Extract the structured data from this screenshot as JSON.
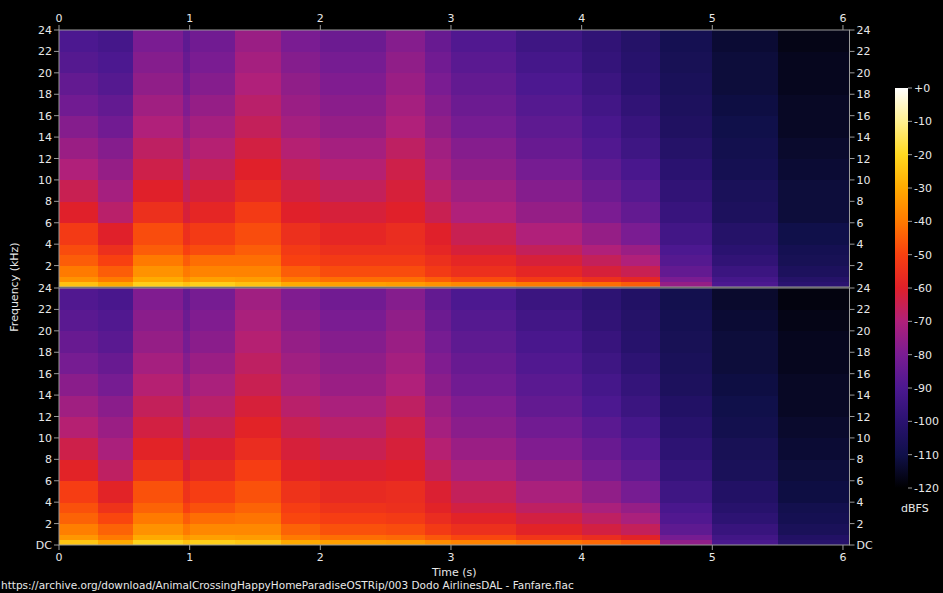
{
  "chart_data": [
    {
      "type": "heatmap",
      "y_label": "Frequency (kHz)",
      "xlim": [
        0,
        6.05
      ],
      "ylim": [
        0,
        24
      ],
      "xticks": [
        0,
        1,
        2,
        3,
        4,
        5,
        6
      ],
      "yticks": [
        2,
        4,
        6,
        8,
        10,
        12,
        14,
        16,
        18,
        20,
        22,
        24
      ],
      "x_edges": [
        0,
        0.3,
        0.57,
        0.95,
        1.0,
        1.35,
        1.7,
        2.0,
        2.5,
        2.8,
        3.0,
        3.5,
        4.0,
        4.3,
        4.6,
        5.0,
        5.5,
        6.05
      ],
      "y_edges": [
        0,
        0.5,
        1,
        2,
        3,
        4,
        6,
        8,
        10,
        12,
        14,
        16,
        18,
        20,
        22,
        24
      ],
      "values": [
        [
          -25,
          -30,
          -22,
          -25,
          -22,
          -25,
          -30,
          -32,
          -33,
          -35,
          -37,
          -40,
          -42,
          -45,
          -75,
          -90,
          -100
        ],
        [
          -35,
          -40,
          -30,
          -35,
          -32,
          -33,
          -40,
          -42,
          -42,
          -45,
          -48,
          -52,
          -55,
          -58,
          -80,
          -92,
          -102
        ],
        [
          -40,
          -45,
          -35,
          -40,
          -38,
          -38,
          -45,
          -48,
          -48,
          -52,
          -55,
          -58,
          -62,
          -65,
          -85,
          -95,
          -105
        ],
        [
          -45,
          -50,
          -40,
          -45,
          -42,
          -42,
          -50,
          -52,
          -52,
          -55,
          -58,
          -62,
          -66,
          -70,
          -88,
          -98,
          -107
        ],
        [
          -48,
          -55,
          -45,
          -50,
          -48,
          -45,
          -52,
          -55,
          -55,
          -58,
          -62,
          -66,
          -70,
          -74,
          -90,
          -100,
          -108
        ],
        [
          -52,
          -60,
          -48,
          -55,
          -52,
          -48,
          -55,
          -58,
          -56,
          -60,
          -65,
          -70,
          -75,
          -80,
          -93,
          -102,
          -110
        ],
        [
          -60,
          -68,
          -55,
          -62,
          -58,
          -52,
          -60,
          -62,
          -60,
          -65,
          -70,
          -75,
          -80,
          -85,
          -96,
          -105,
          -112
        ],
        [
          -65,
          -72,
          -60,
          -66,
          -62,
          -57,
          -63,
          -66,
          -62,
          -68,
          -73,
          -78,
          -83,
          -88,
          -98,
          -106,
          -112
        ],
        [
          -70,
          -75,
          -64,
          -70,
          -66,
          -60,
          -66,
          -69,
          -64,
          -71,
          -76,
          -81,
          -86,
          -91,
          -100,
          -108,
          -113
        ],
        [
          -74,
          -78,
          -67,
          -73,
          -69,
          -63,
          -69,
          -72,
          -67,
          -73,
          -78,
          -84,
          -89,
          -94,
          -102,
          -109,
          -114
        ],
        [
          -78,
          -82,
          -70,
          -76,
          -72,
          -66,
          -72,
          -75,
          -70,
          -76,
          -81,
          -86,
          -91,
          -96,
          -104,
          -110,
          -115
        ],
        [
          -82,
          -85,
          -73,
          -79,
          -75,
          -68,
          -74,
          -77,
          -72,
          -78,
          -83,
          -88,
          -93,
          -98,
          -105,
          -111,
          -115
        ],
        [
          -85,
          -88,
          -76,
          -82,
          -78,
          -70,
          -76,
          -79,
          -74,
          -80,
          -85,
          -90,
          -95,
          -100,
          -106,
          -112,
          -116
        ],
        [
          -88,
          -90,
          -78,
          -84,
          -80,
          -72,
          -78,
          -81,
          -76,
          -82,
          -87,
          -92,
          -97,
          -101,
          -107,
          -112,
          -116
        ],
        [
          -90,
          -92,
          -80,
          -86,
          -82,
          -74,
          -80,
          -83,
          -78,
          -84,
          -89,
          -94,
          -98,
          -102,
          -108,
          -113,
          -117
        ]
      ],
      "colorbar": {
        "label": "dBFS",
        "range": [
          -120,
          0
        ],
        "ticks": [
          {
            "value": 0,
            "label": "+0"
          },
          -10,
          -20,
          -30,
          -40,
          -50,
          -60,
          -70,
          -80,
          -90,
          -100,
          -110,
          -120
        ]
      }
    },
    {
      "type": "heatmap",
      "x_label": "Time (s)",
      "xlim": [
        0,
        6.05
      ],
      "ylim": [
        0,
        24
      ],
      "xticks": [
        0,
        1,
        2,
        3,
        4,
        5,
        6
      ],
      "yticks": [
        {
          "value": 0,
          "label": "DC"
        },
        2,
        4,
        6,
        8,
        10,
        12,
        14,
        16,
        18,
        20,
        22,
        24
      ],
      "x_edges": [
        0,
        0.3,
        0.57,
        0.95,
        1.0,
        1.35,
        1.7,
        2.0,
        2.5,
        2.8,
        3.0,
        3.5,
        4.0,
        4.3,
        4.6,
        5.0,
        5.5,
        6.05
      ],
      "y_edges": [
        0,
        0.5,
        1,
        2,
        3,
        4,
        6,
        8,
        10,
        12,
        14,
        16,
        18,
        20,
        22,
        24
      ],
      "values": [
        [
          -24,
          -30,
          -21,
          -25,
          -22,
          -24,
          -30,
          -32,
          -33,
          -36,
          -38,
          -41,
          -43,
          -46,
          -76,
          -91,
          -101
        ],
        [
          -34,
          -40,
          -30,
          -34,
          -32,
          -33,
          -40,
          -42,
          -43,
          -46,
          -49,
          -53,
          -56,
          -59,
          -81,
          -93,
          -103
        ],
        [
          -39,
          -44,
          -35,
          -40,
          -37,
          -37,
          -44,
          -47,
          -48,
          -52,
          -55,
          -59,
          -63,
          -66,
          -86,
          -96,
          -106
        ],
        [
          -44,
          -49,
          -40,
          -45,
          -42,
          -41,
          -49,
          -51,
          -52,
          -56,
          -59,
          -63,
          -67,
          -71,
          -89,
          -99,
          -108
        ],
        [
          -47,
          -54,
          -44,
          -50,
          -47,
          -44,
          -51,
          -54,
          -55,
          -59,
          -63,
          -67,
          -71,
          -75,
          -91,
          -101,
          -109
        ],
        [
          -51,
          -59,
          -47,
          -54,
          -51,
          -47,
          -54,
          -57,
          -56,
          -61,
          -66,
          -71,
          -76,
          -81,
          -94,
          -103,
          -111
        ],
        [
          -59,
          -67,
          -54,
          -61,
          -57,
          -51,
          -59,
          -61,
          -60,
          -66,
          -71,
          -76,
          -81,
          -86,
          -97,
          -106,
          -112
        ],
        [
          -64,
          -71,
          -59,
          -65,
          -61,
          -56,
          -62,
          -65,
          -62,
          -69,
          -74,
          -79,
          -84,
          -89,
          -99,
          -107,
          -113
        ],
        [
          -69,
          -74,
          -63,
          -69,
          -65,
          -59,
          -65,
          -68,
          -64,
          -72,
          -77,
          -82,
          -87,
          -92,
          -101,
          -109,
          -114
        ],
        [
          -73,
          -77,
          -66,
          -72,
          -68,
          -62,
          -68,
          -71,
          -67,
          -74,
          -79,
          -85,
          -90,
          -95,
          -103,
          -110,
          -115
        ],
        [
          -77,
          -81,
          -69,
          -75,
          -71,
          -65,
          -71,
          -74,
          -70,
          -77,
          -82,
          -87,
          -92,
          -97,
          -105,
          -111,
          -115
        ],
        [
          -81,
          -84,
          -72,
          -78,
          -74,
          -67,
          -73,
          -76,
          -72,
          -79,
          -84,
          -89,
          -94,
          -99,
          -106,
          -112,
          -116
        ],
        [
          -84,
          -87,
          -75,
          -81,
          -77,
          -69,
          -75,
          -78,
          -74,
          -81,
          -86,
          -91,
          -96,
          -101,
          -107,
          -112,
          -116
        ],
        [
          -87,
          -89,
          -77,
          -83,
          -79,
          -71,
          -77,
          -80,
          -76,
          -83,
          -88,
          -93,
          -98,
          -102,
          -108,
          -113,
          -117
        ],
        [
          -89,
          -91,
          -79,
          -85,
          -81,
          -73,
          -79,
          -82,
          -78,
          -85,
          -90,
          -95,
          -99,
          -103,
          -109,
          -114,
          -118
        ]
      ]
    }
  ],
  "footer": "https://archive.org/download/AnimalCrossingHappyHomeParadiseOSTRip/003 Dodo AirlinesDAL - Fanfare.flac"
}
